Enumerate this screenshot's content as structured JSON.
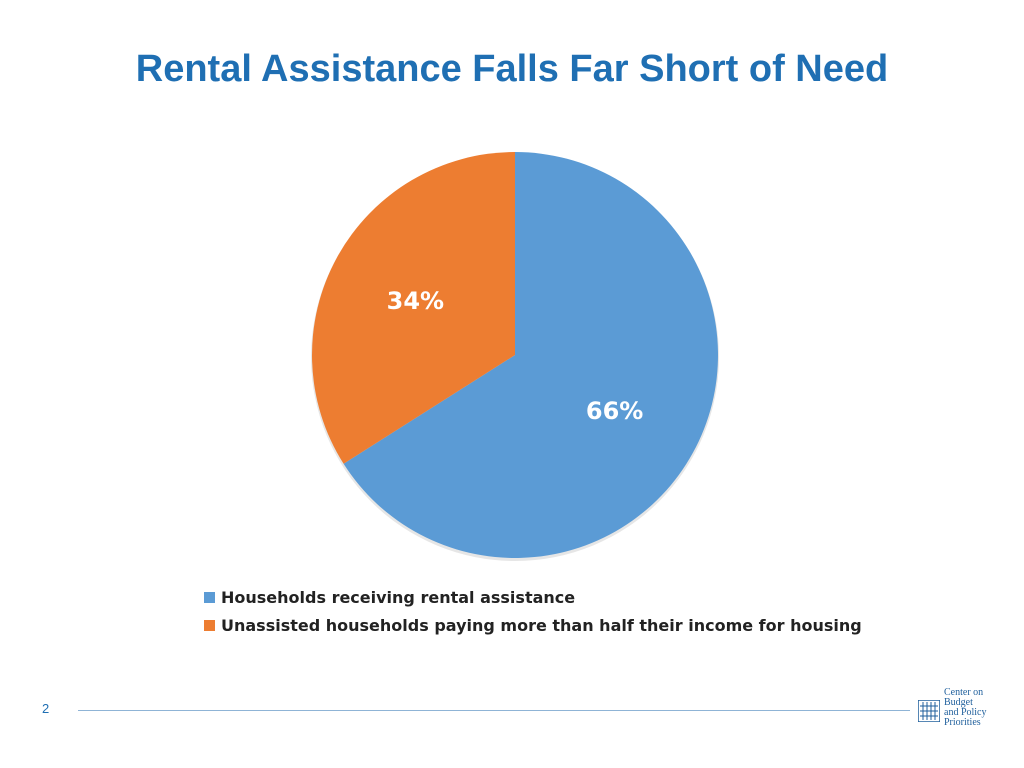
{
  "title": "Rental Assistance Falls Far Short of Need",
  "page_number": "2",
  "logo": {
    "lines": [
      "Center on",
      "Budget",
      "and Policy",
      "Priorities"
    ]
  },
  "colors": {
    "title": "#1f6fb3",
    "series_1": "#5b9bd5",
    "series_2": "#ed7d31"
  },
  "chart_data": {
    "type": "pie",
    "title": "",
    "slices": [
      {
        "name": "Households receiving rental assistance",
        "value": 66,
        "label": "66%",
        "color": "#5b9bd5"
      },
      {
        "name": "Unassisted households paying more than half their income for housing",
        "value": 34,
        "label": "34%",
        "color": "#ed7d31"
      }
    ],
    "start_angle": "12 o'clock, clockwise",
    "legend_position": "bottom"
  }
}
